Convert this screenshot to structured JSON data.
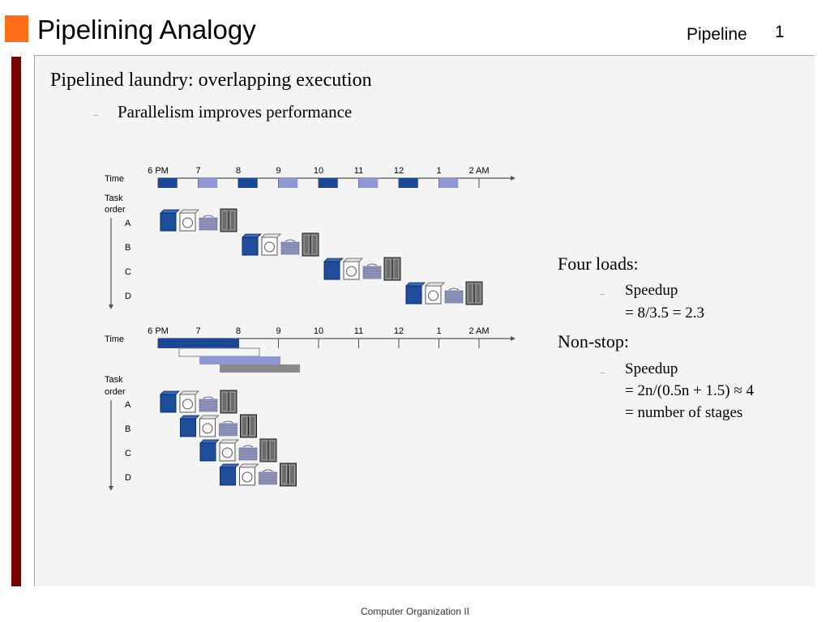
{
  "header": {
    "title": "Pipelining Analogy",
    "topic": "Pipeline",
    "page_number": "1"
  },
  "main": {
    "bullet_1": "Pipelined laundry: overlapping execution",
    "bullet_1_sub": "Parallelism improves performance"
  },
  "figure": {
    "time_label": "Time",
    "task_order_label_1": "Task",
    "task_order_label_2": "order",
    "time_ticks": [
      "6 PM",
      "7",
      "8",
      "9",
      "10",
      "11",
      "12",
      "1",
      "2 AM"
    ],
    "tasks": [
      "A",
      "B",
      "C",
      "D"
    ],
    "colors": {
      "washer": "#1f4f9a",
      "dryer": "#ffffff",
      "folder": "#8e99d2",
      "closet": "#6c6c6c",
      "slot_dark": "#1a4796",
      "slot_light": "#8f98d4",
      "axis": "#555555"
    }
  },
  "notes": {
    "four_loads": "Four loads:",
    "speedup_1": "Speedup",
    "speedup_1_eq": "= 8/3.5 = 2.3",
    "non_stop": "Non-stop:",
    "speedup_2": "Speedup",
    "speedup_2_eq": "= 2n/(0.5n + 1.5) ≈ 4",
    "speedup_2_eq2": "= number of stages"
  },
  "footer": {
    "text": "Computer Organization II"
  }
}
